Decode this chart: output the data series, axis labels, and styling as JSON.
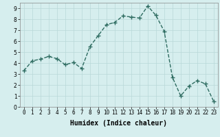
{
  "x": [
    0,
    1,
    2,
    3,
    4,
    5,
    6,
    7,
    8,
    9,
    10,
    11,
    12,
    13,
    14,
    15,
    16,
    17,
    18,
    19,
    20,
    21,
    22,
    23
  ],
  "y": [
    3.3,
    4.2,
    4.35,
    4.6,
    4.4,
    3.85,
    4.05,
    3.5,
    5.5,
    6.5,
    7.5,
    7.7,
    8.3,
    8.2,
    8.1,
    9.2,
    8.35,
    6.9,
    2.7,
    1.0,
    1.9,
    2.4,
    2.1,
    0.5
  ],
  "line_color": "#2d6b60",
  "marker": "+",
  "marker_size": 4,
  "bg_color": "#d6eeee",
  "grid_color": "#b8d8d8",
  "xlabel": "Humidex (Indice chaleur)",
  "xlim": [
    -0.5,
    23.5
  ],
  "ylim": [
    0,
    9.5
  ],
  "xticks": [
    0,
    1,
    2,
    3,
    4,
    5,
    6,
    7,
    8,
    9,
    10,
    11,
    12,
    13,
    14,
    15,
    16,
    17,
    18,
    19,
    20,
    21,
    22,
    23
  ],
  "yticks": [
    0,
    1,
    2,
    3,
    4,
    5,
    6,
    7,
    8,
    9
  ],
  "tick_fontsize": 5.5,
  "xlabel_fontsize": 7.0,
  "linewidth": 1.0,
  "marker_linewidth": 1.0
}
